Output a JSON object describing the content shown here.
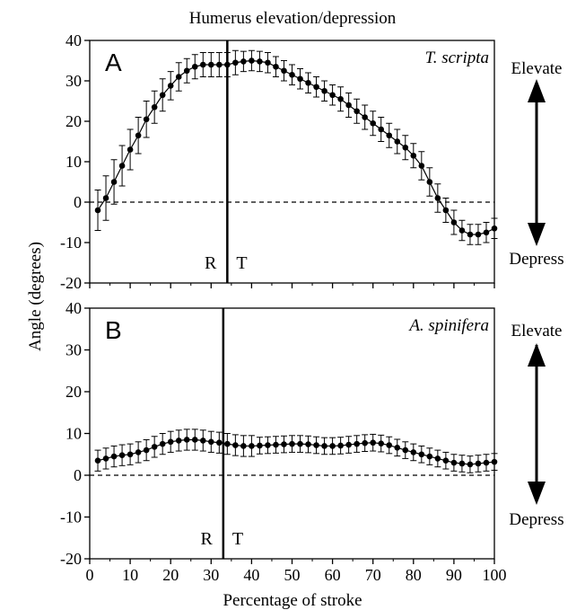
{
  "title": "Humerus elevation/depression",
  "xlabel": "Percentage of stroke",
  "ylabel": "Angle (degrees)",
  "labels": {
    "elevate": "Elevate",
    "depress": "Depress"
  },
  "chart_data": [
    {
      "type": "line",
      "panel": "A",
      "species": "T. scripta",
      "xlim": [
        0,
        100
      ],
      "ylim": [
        -20,
        40
      ],
      "x_ticks": [
        0,
        10,
        20,
        30,
        40,
        50,
        60,
        70,
        80,
        90,
        100
      ],
      "y_ticks": [
        40,
        30,
        20,
        10,
        0,
        -10,
        -20
      ],
      "reference_line": 0,
      "transition_x": 34,
      "transition_labels": [
        "R",
        "T"
      ],
      "x": [
        2,
        4,
        6,
        8,
        10,
        12,
        14,
        16,
        18,
        20,
        22,
        24,
        26,
        28,
        30,
        32,
        34,
        36,
        38,
        40,
        42,
        44,
        46,
        48,
        50,
        52,
        54,
        56,
        58,
        60,
        62,
        64,
        66,
        68,
        70,
        72,
        74,
        76,
        78,
        80,
        82,
        84,
        86,
        88,
        90,
        92,
        94,
        96,
        98,
        100
      ],
      "y": [
        -2,
        1,
        5,
        9,
        13,
        16.5,
        20.5,
        23.5,
        26.5,
        28.8,
        31,
        32.5,
        33.5,
        34,
        34,
        34,
        34,
        34.5,
        34.8,
        35,
        34.8,
        34.5,
        33.5,
        32.5,
        31.5,
        30.5,
        29.5,
        28.5,
        27.5,
        26.5,
        25.5,
        24,
        22.5,
        21,
        19.5,
        18,
        16.5,
        15,
        13.5,
        11.5,
        9,
        5,
        1,
        -2,
        -5,
        -7,
        -8,
        -8,
        -7.5,
        -6.5
      ],
      "error": [
        5,
        5.5,
        5.5,
        5,
        5,
        4.5,
        4.5,
        4,
        4,
        3.5,
        3.5,
        3,
        3,
        3,
        3,
        3,
        3,
        3,
        2.5,
        2.5,
        2.5,
        2.5,
        2.5,
        2.5,
        2.5,
        2.5,
        2.5,
        2.5,
        2.5,
        2.5,
        3,
        3,
        3,
        3,
        3,
        3,
        3,
        3,
        3,
        3,
        3.5,
        3.5,
        3.5,
        3,
        3,
        2.5,
        2.5,
        2.5,
        2.5,
        2.5
      ]
    },
    {
      "type": "line",
      "panel": "B",
      "species": "A. spinifera",
      "xlim": [
        0,
        100
      ],
      "ylim": [
        -20,
        40
      ],
      "x_ticks": [
        0,
        10,
        20,
        30,
        40,
        50,
        60,
        70,
        80,
        90,
        100
      ],
      "y_ticks": [
        40,
        30,
        20,
        10,
        0,
        -10,
        -20
      ],
      "reference_line": 0,
      "transition_x": 33,
      "transition_labels": [
        "R",
        "T"
      ],
      "x": [
        2,
        4,
        6,
        8,
        10,
        12,
        14,
        16,
        18,
        20,
        22,
        24,
        26,
        28,
        30,
        32,
        34,
        36,
        38,
        40,
        42,
        44,
        46,
        48,
        50,
        52,
        54,
        56,
        58,
        60,
        62,
        64,
        66,
        68,
        70,
        72,
        74,
        76,
        78,
        80,
        82,
        84,
        86,
        88,
        90,
        92,
        94,
        96,
        98,
        100
      ],
      "y": [
        3.5,
        4,
        4.5,
        4.8,
        5,
        5.5,
        6,
        6.8,
        7.5,
        8,
        8.3,
        8.5,
        8.5,
        8.3,
        8,
        7.8,
        7.5,
        7.2,
        7,
        7,
        7.1,
        7.2,
        7.3,
        7.4,
        7.5,
        7.5,
        7.4,
        7.2,
        7,
        7,
        7.1,
        7.3,
        7.5,
        7.7,
        7.8,
        7.6,
        7.2,
        6.6,
        6,
        5.5,
        5,
        4.5,
        4,
        3.5,
        3,
        2.8,
        2.6,
        2.8,
        3,
        3.2
      ],
      "error": [
        2.5,
        2.5,
        2.5,
        2.5,
        2.5,
        2.5,
        2.5,
        2.5,
        2.5,
        2.5,
        2.5,
        2.5,
        2.5,
        2.5,
        2.5,
        2.5,
        2.5,
        2.5,
        2.5,
        2.5,
        2,
        2,
        2,
        2,
        2,
        2,
        2,
        2,
        2,
        2,
        2,
        2,
        2,
        2,
        2,
        2,
        2,
        2,
        2,
        2,
        2,
        2,
        2,
        2,
        2,
        2,
        2,
        2,
        2,
        2
      ]
    }
  ]
}
